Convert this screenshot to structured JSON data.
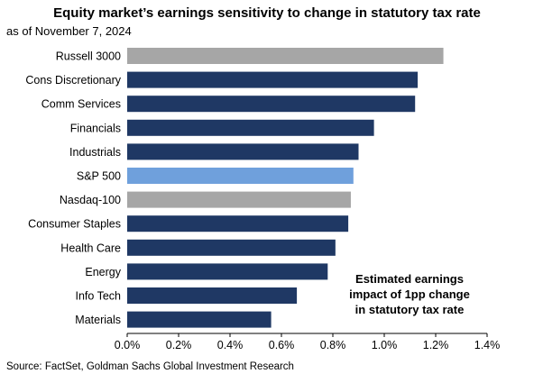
{
  "chart_data": {
    "type": "bar",
    "orientation": "horizontal",
    "title": "Equity market’s earnings sensitivity to change in statutory tax rate",
    "subtitle": "as of November 7, 2024",
    "source": "Source: FactSet, Goldman Sachs Global Investment Research",
    "categories": [
      "Russell 3000",
      "Cons Discretionary",
      "Comm Services",
      "Financials",
      "Industrials",
      "S&P 500",
      "Nasdaq-100",
      "Consumer Staples",
      "Health Care",
      "Energy",
      "Info Tech",
      "Materials"
    ],
    "values": [
      1.23,
      1.13,
      1.12,
      0.96,
      0.9,
      0.88,
      0.87,
      0.86,
      0.81,
      0.78,
      0.66,
      0.56
    ],
    "bar_colors": [
      "#a6a6a6",
      "#1f3864",
      "#1f3864",
      "#1f3864",
      "#1f3864",
      "#6fa0dc",
      "#a6a6a6",
      "#1f3864",
      "#1f3864",
      "#1f3864",
      "#1f3864",
      "#1f3864"
    ],
    "xlim": [
      0,
      1.4
    ],
    "xticks": [
      "0.0%",
      "0.2%",
      "0.4%",
      "0.6%",
      "0.8%",
      "1.0%",
      "1.2%",
      "1.4%"
    ],
    "annotation": [
      "Estimated earnings",
      "impact of 1pp change",
      "in statutory tax rate"
    ]
  }
}
